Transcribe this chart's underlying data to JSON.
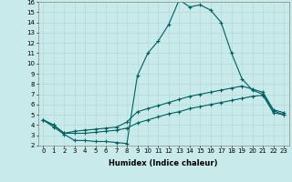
{
  "xlabel": "Humidex (Indice chaleur)",
  "ylabel": "",
  "bg_color": "#c8eaea",
  "grid_color": "#b8d8d8",
  "line_color": "#006060",
  "xlim": [
    -0.5,
    23.5
  ],
  "ylim": [
    2,
    16
  ],
  "xticks": [
    0,
    1,
    2,
    3,
    4,
    5,
    6,
    7,
    8,
    9,
    10,
    11,
    12,
    13,
    14,
    15,
    16,
    17,
    18,
    19,
    20,
    21,
    22,
    23
  ],
  "yticks": [
    2,
    3,
    4,
    5,
    6,
    7,
    8,
    9,
    10,
    11,
    12,
    13,
    14,
    15,
    16
  ],
  "line1_x": [
    0,
    1,
    2,
    3,
    4,
    5,
    6,
    7,
    8,
    9,
    10,
    11,
    12,
    13,
    14,
    15,
    16,
    17,
    18,
    19,
    20,
    21,
    22,
    23
  ],
  "line1_y": [
    4.5,
    3.8,
    3.1,
    2.5,
    2.5,
    2.4,
    2.4,
    2.3,
    2.2,
    8.8,
    11.0,
    12.2,
    13.8,
    16.2,
    15.5,
    15.7,
    15.2,
    14.0,
    11.0,
    8.5,
    7.4,
    7.0,
    5.4,
    5.0
  ],
  "line2_x": [
    0,
    1,
    2,
    3,
    4,
    5,
    6,
    7,
    8,
    9,
    10,
    11,
    12,
    13,
    14,
    15,
    16,
    17,
    18,
    19,
    20,
    21,
    22,
    23
  ],
  "line2_y": [
    4.5,
    4.0,
    3.2,
    3.4,
    3.5,
    3.6,
    3.7,
    3.8,
    4.3,
    5.3,
    5.6,
    5.9,
    6.2,
    6.5,
    6.8,
    7.0,
    7.2,
    7.4,
    7.6,
    7.8,
    7.5,
    7.2,
    5.5,
    5.2
  ],
  "line3_x": [
    0,
    1,
    2,
    3,
    4,
    5,
    6,
    7,
    8,
    9,
    10,
    11,
    12,
    13,
    14,
    15,
    16,
    17,
    18,
    19,
    20,
    21,
    22,
    23
  ],
  "line3_y": [
    4.5,
    4.0,
    3.2,
    3.2,
    3.2,
    3.3,
    3.4,
    3.5,
    3.7,
    4.2,
    4.5,
    4.8,
    5.1,
    5.3,
    5.6,
    5.8,
    6.0,
    6.2,
    6.4,
    6.6,
    6.8,
    6.9,
    5.2,
    5.0
  ],
  "tick_fontsize": 5.0,
  "xlabel_fontsize": 6.0
}
